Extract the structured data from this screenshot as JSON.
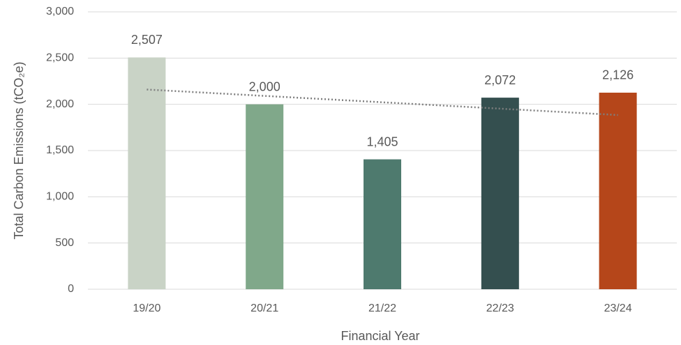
{
  "chart_data": {
    "type": "bar",
    "x_label": "Financial Year",
    "y_label": "Total Carbon Emissions (tCO₂e)",
    "categories": [
      "19/20",
      "20/21",
      "21/22",
      "22/23",
      "23/24"
    ],
    "values": [
      2507,
      2000,
      1405,
      2072,
      2126
    ],
    "value_labels": [
      "2,507",
      "2,000",
      "1,405",
      "2,072",
      "2,126"
    ],
    "colors": [
      "#c9d3c6",
      "#80a88a",
      "#4e7a6e",
      "#344f4f",
      "#b5461a"
    ],
    "ylim": [
      0,
      3000
    ],
    "yticks": [
      0,
      500,
      {
        "value": 1000,
        "label": "1,000"
      },
      {
        "value": 1500,
        "label": "1,500"
      },
      {
        "value": 2000,
        "label": "2,000"
      },
      {
        "value": 2500,
        "label": "2,500"
      },
      {
        "value": 3000,
        "label": "3,000"
      }
    ],
    "grid": true,
    "trendline": "linear",
    "trendline_color": "#7f7f7f"
  }
}
